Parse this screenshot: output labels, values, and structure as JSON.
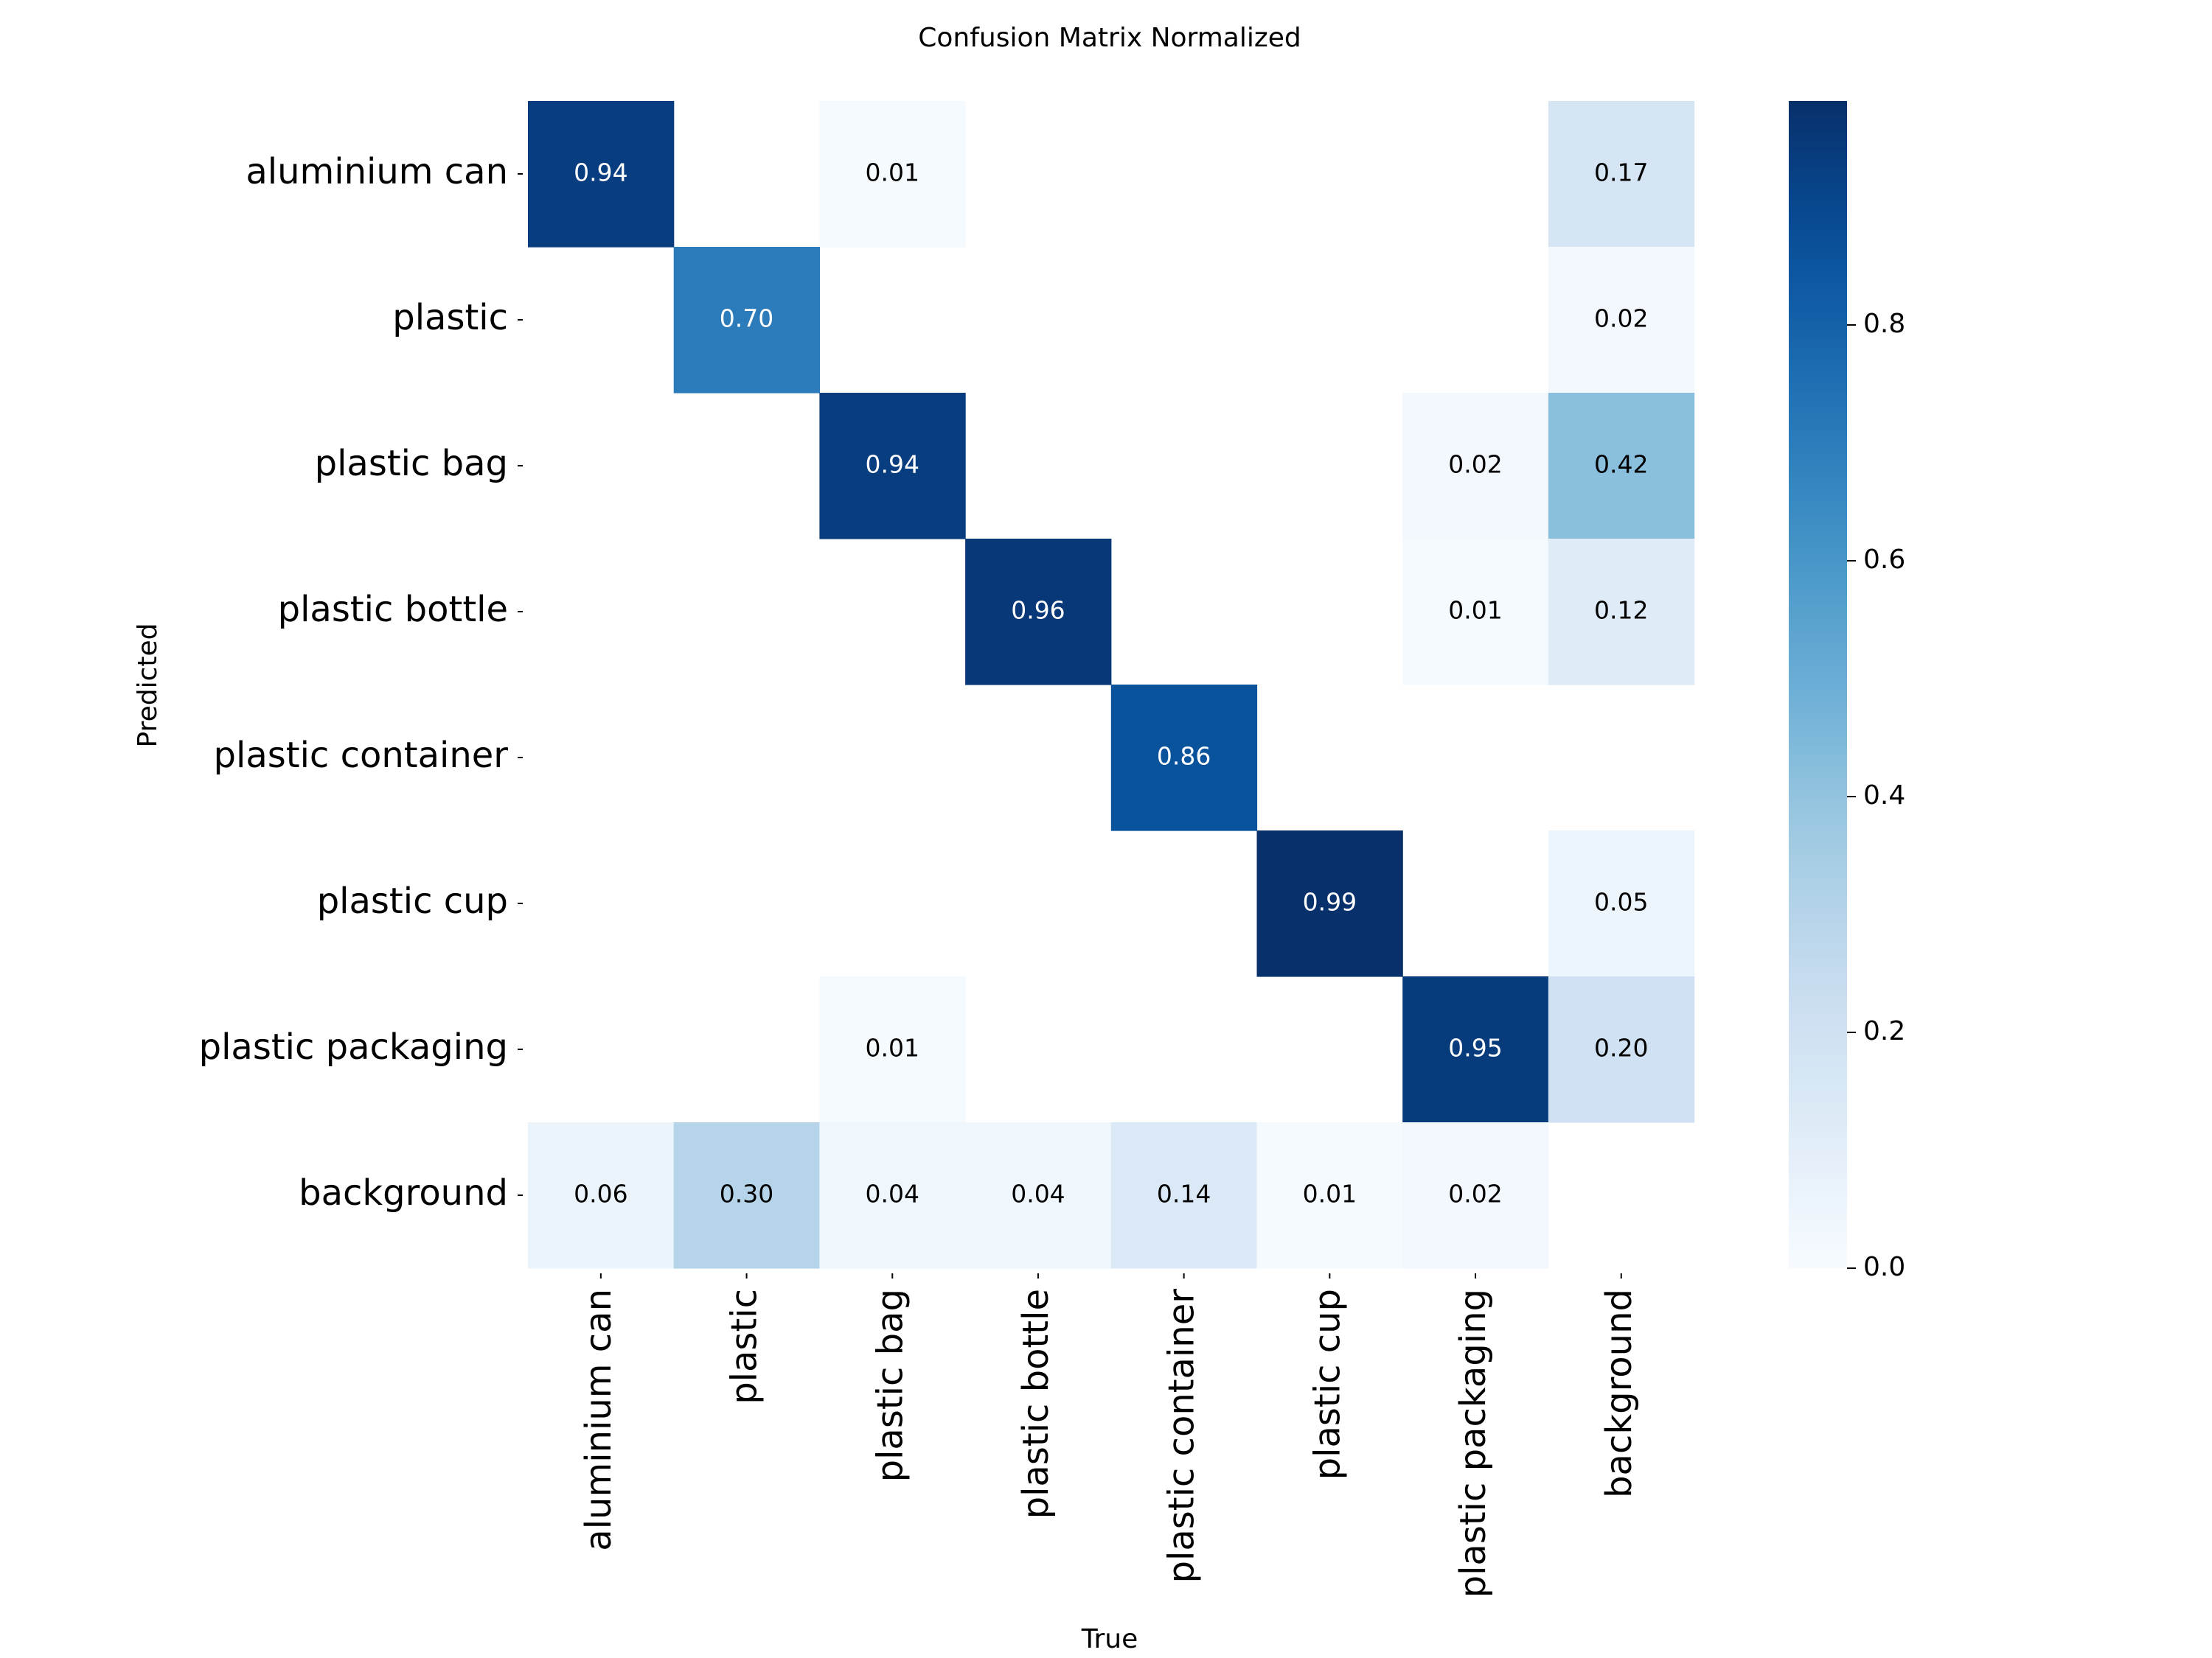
{
  "chart_data": {
    "type": "heatmap",
    "title": "Confusion Matrix Normalized",
    "xlabel": "True",
    "ylabel": "Predicted",
    "row_labels": [
      "aluminium can",
      "plastic",
      "plastic bag",
      "plastic bottle",
      "plastic container",
      "plastic cup",
      "plastic packaging",
      "background"
    ],
    "col_labels": [
      "aluminium can",
      "plastic",
      "plastic bag",
      "plastic bottle",
      "plastic container",
      "plastic cup",
      "plastic packaging",
      "background"
    ],
    "values": [
      [
        0.94,
        null,
        0.01,
        null,
        null,
        null,
        null,
        0.17
      ],
      [
        null,
        0.7,
        null,
        null,
        null,
        null,
        null,
        0.02
      ],
      [
        null,
        null,
        0.94,
        null,
        null,
        null,
        0.02,
        0.42
      ],
      [
        null,
        null,
        null,
        0.96,
        null,
        null,
        0.01,
        0.12
      ],
      [
        null,
        null,
        null,
        null,
        0.86,
        null,
        null,
        null
      ],
      [
        null,
        null,
        null,
        null,
        null,
        0.99,
        null,
        0.05
      ],
      [
        null,
        null,
        0.01,
        null,
        null,
        null,
        0.95,
        0.2
      ],
      [
        0.06,
        0.3,
        0.04,
        0.04,
        0.14,
        0.01,
        0.02,
        null
      ]
    ],
    "value_labels": [
      [
        "0.94",
        "",
        "0.01",
        "",
        "",
        "",
        "",
        "0.17"
      ],
      [
        "",
        "0.70",
        "",
        "",
        "",
        "",
        "",
        "0.02"
      ],
      [
        "",
        "",
        "0.94",
        "",
        "",
        "",
        "0.02",
        "0.42"
      ],
      [
        "",
        "",
        "",
        "0.96",
        "",
        "",
        "0.01",
        "0.12"
      ],
      [
        "",
        "",
        "",
        "",
        "0.86",
        "",
        "",
        ""
      ],
      [
        "",
        "",
        "",
        "",
        "",
        "0.99",
        "",
        "0.05"
      ],
      [
        "",
        "",
        "0.01",
        "",
        "",
        "",
        "0.95",
        "0.20"
      ],
      [
        "0.06",
        "0.30",
        "0.04",
        "0.04",
        "0.14",
        "0.01",
        "0.02",
        ""
      ]
    ],
    "colorbar": {
      "range": [
        0.0,
        0.99
      ],
      "ticks": [
        0.0,
        0.2,
        0.4,
        0.6,
        0.8
      ],
      "tick_labels": [
        "0.0",
        "0.2",
        "0.4",
        "0.6",
        "0.8"
      ],
      "colormap": "Blues"
    }
  }
}
